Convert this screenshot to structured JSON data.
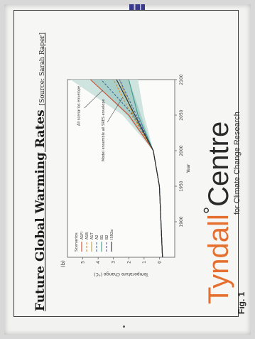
{
  "slide": {
    "title": "Future Global Warming Rates",
    "source": "[Source: Sarah Raper]",
    "figure_label": "Fig. 1",
    "logo": {
      "part1": "Tyndall",
      "degree": "°",
      "part2": "Centre",
      "subtitle": "for Climate Change Research"
    }
  },
  "colors": {
    "logo_orange": "#e46f2e",
    "binder_blue": "#3a3a8c"
  },
  "chart_data": {
    "type": "line",
    "panel_label": "(b)",
    "xlabel": "Year",
    "ylabel": "Temperature Change (°C)",
    "xlim": [
      1850,
      2100
    ],
    "ylim": [
      -1,
      6
    ],
    "x_ticks": [
      "1900",
      "1950",
      "2000",
      "2050",
      "2100"
    ],
    "y_ticks": [
      "0",
      "1",
      "2",
      "3",
      "4",
      "5"
    ],
    "legend_title": "Scenarios",
    "legend": [
      "A1FI",
      "A1B",
      "A1T",
      "A2",
      "B1",
      "B2",
      "IS92a"
    ],
    "annotations": [
      "All scenarios envelope",
      "Model ensemble all SRES envelope"
    ],
    "x": [
      1850,
      1900,
      1950,
      2000,
      2050,
      2100
    ],
    "series": [
      {
        "name": "A1FI",
        "values": [
          -0.2,
          -0.1,
          0.0,
          0.4,
          2.0,
          4.5
        ]
      },
      {
        "name": "A1B",
        "values": [
          -0.2,
          -0.1,
          0.0,
          0.4,
          1.8,
          3.0
        ]
      },
      {
        "name": "A1T",
        "values": [
          -0.2,
          -0.1,
          0.0,
          0.4,
          1.7,
          2.6
        ]
      },
      {
        "name": "A2",
        "values": [
          -0.2,
          -0.1,
          0.0,
          0.4,
          1.7,
          3.8
        ]
      },
      {
        "name": "B1",
        "values": [
          -0.2,
          -0.1,
          0.0,
          0.4,
          1.4,
          2.0
        ]
      },
      {
        "name": "B2",
        "values": [
          -0.2,
          -0.1,
          0.0,
          0.4,
          1.5,
          2.6
        ]
      },
      {
        "name": "IS92a",
        "values": [
          -0.2,
          -0.1,
          0.0,
          0.4,
          1.6,
          2.8
        ]
      }
    ],
    "envelope_outer": {
      "low": [
        -0.2,
        -0.1,
        0.0,
        0.4,
        1.0,
        1.4
      ],
      "high": [
        -0.2,
        -0.1,
        0.0,
        0.4,
        2.4,
        5.8
      ]
    },
    "envelope_inner": {
      "low": [
        -0.2,
        -0.1,
        0.0,
        0.4,
        1.2,
        2.0
      ],
      "high": [
        -0.2,
        -0.1,
        0.0,
        0.4,
        2.1,
        4.5
      ]
    },
    "series_colors": [
      "#d24a2e",
      "#e08a2a",
      "#b8a040",
      "#3a6aa0",
      "#3a9a8a",
      "#5a5ab0",
      "#2a2a2a"
    ]
  }
}
